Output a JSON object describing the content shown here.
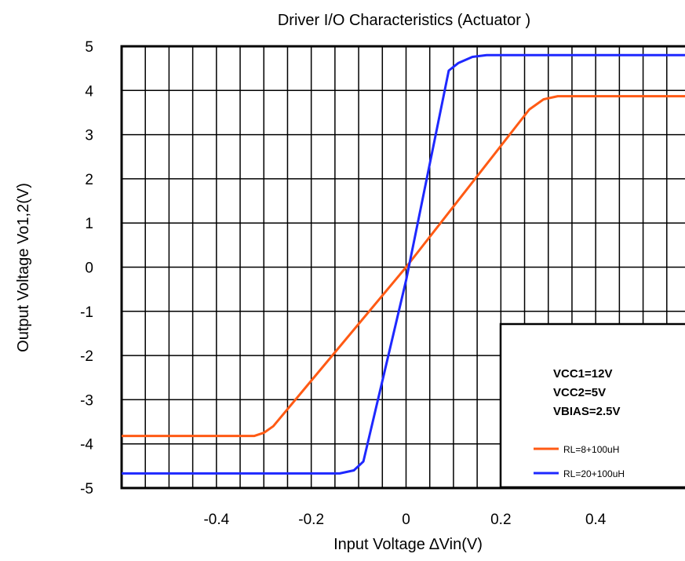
{
  "chart_data": {
    "type": "line",
    "title": "Driver I/O Characteristics (Actuator )",
    "xlabel": "Input Voltage ∆Vin(V)",
    "ylabel": "Output Voltage Vo1,2(V)",
    "xlim": [
      -0.6,
      0.6
    ],
    "ylim": [
      -5,
      5
    ],
    "x_ticks": [
      -0.4,
      -0.2,
      0,
      0.2,
      0.4
    ],
    "x_tick_labels": [
      "-0.4",
      "-0.2",
      "0",
      "0.2",
      "0.4"
    ],
    "y_ticks": [
      5,
      4,
      3,
      2,
      1,
      0,
      -1,
      -2,
      -3,
      -4,
      -5
    ],
    "y_tick_labels": [
      "5",
      "4",
      "3",
      "2",
      "1",
      "0",
      "-1",
      "-2",
      "-3",
      "-4",
      "-5"
    ],
    "grid_x_step": 0.05,
    "grid": true,
    "legend_position": "bottom-right",
    "annotation_lines": [
      "VCC1=12V",
      "VCC2=5V",
      "VBIAS=2.5V"
    ],
    "series": [
      {
        "name": "RL=8+100uH",
        "color": "#ff5a14",
        "points": [
          [
            -0.6,
            -3.82
          ],
          [
            -0.32,
            -3.82
          ],
          [
            -0.3,
            -3.75
          ],
          [
            -0.28,
            -3.6
          ],
          [
            0,
            0
          ],
          [
            0.26,
            3.57
          ],
          [
            0.29,
            3.8
          ],
          [
            0.32,
            3.87
          ],
          [
            0.6,
            3.87
          ]
        ]
      },
      {
        "name": "RL=20+100uH",
        "color": "#1e28ff",
        "points": [
          [
            -0.6,
            -4.67
          ],
          [
            -0.14,
            -4.67
          ],
          [
            -0.11,
            -4.6
          ],
          [
            -0.09,
            -4.4
          ],
          [
            0,
            -0.3
          ],
          [
            0.09,
            4.45
          ],
          [
            0.11,
            4.62
          ],
          [
            0.14,
            4.76
          ],
          [
            0.17,
            4.8
          ],
          [
            0.6,
            4.8
          ]
        ]
      }
    ]
  }
}
